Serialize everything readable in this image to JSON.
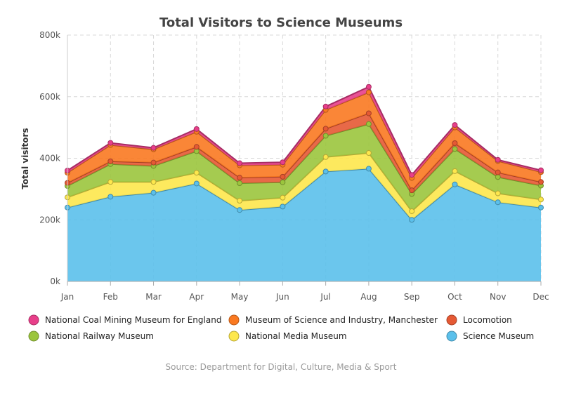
{
  "chart_data": {
    "type": "area",
    "stacked": true,
    "title": "Total Visitors to Science Museums",
    "ylabel": "Total visitors",
    "source": "Source: Department for Digital, Culture, Media & Sport",
    "categories": [
      "Jan",
      "Feb",
      "Mar",
      "Apr",
      "May",
      "Jun",
      "Jul",
      "Aug",
      "Sep",
      "Oct",
      "Nov",
      "Dec"
    ],
    "ylim": [
      0,
      800000
    ],
    "yticks": [
      0,
      200000,
      400000,
      600000,
      800000
    ],
    "ytick_labels": [
      "0k",
      "200k",
      "400k",
      "600k",
      "800k"
    ],
    "grid": true,
    "legend_position": "bottom",
    "series": [
      {
        "name": "Science Museum",
        "color": "#5bc0eb",
        "values": [
          240000,
          275000,
          288000,
          318000,
          232000,
          243000,
          357000,
          366000,
          200000,
          315000,
          257000,
          240000
        ]
      },
      {
        "name": "National Media Museum",
        "color": "#fde74c",
        "values": [
          33000,
          48000,
          35000,
          35000,
          30000,
          29000,
          47000,
          51000,
          28000,
          43000,
          29000,
          26000
        ]
      },
      {
        "name": "National Railway Museum",
        "color": "#9bc53d",
        "values": [
          37000,
          58000,
          52000,
          70000,
          57000,
          50000,
          69000,
          94000,
          56000,
          72000,
          53000,
          45000
        ]
      },
      {
        "name": "Locomotion",
        "color": "#e55934",
        "values": [
          10000,
          9000,
          11000,
          14000,
          18000,
          18000,
          23000,
          35000,
          12000,
          19000,
          15000,
          12000
        ]
      },
      {
        "name": "Museum of Science and Industry, Manchester",
        "color": "#fa7921",
        "values": [
          33000,
          53000,
          43000,
          49000,
          40000,
          39000,
          61000,
          68000,
          40000,
          51000,
          37000,
          32000
        ]
      },
      {
        "name": "National Coal Mining Museum for England",
        "color": "#e83f8a",
        "values": [
          7000,
          7000,
          5000,
          9000,
          7000,
          8000,
          11000,
          18000,
          10000,
          8000,
          4000,
          6000
        ]
      }
    ],
    "legend_order": [
      "National Coal Mining Museum for England",
      "Museum of Science and Industry, Manchester",
      "Locomotion",
      "National Railway Museum",
      "National Media Museum",
      "Science Museum"
    ]
  }
}
